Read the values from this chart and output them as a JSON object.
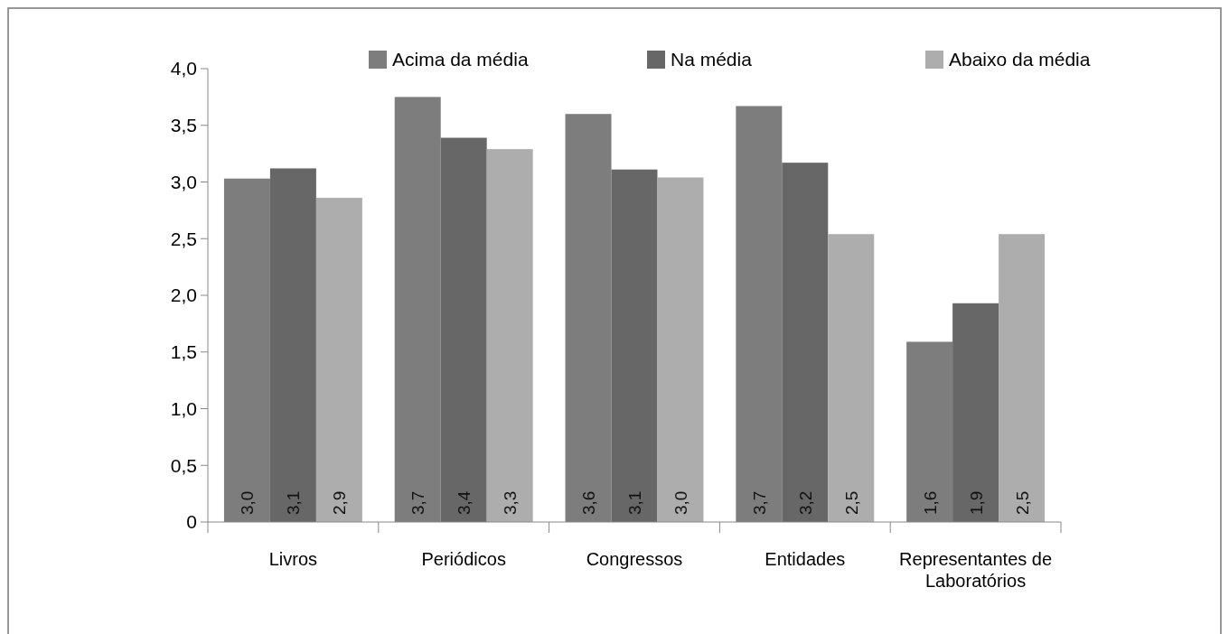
{
  "chart_data": {
    "type": "bar",
    "categories": [
      "Livros",
      "Periódicos",
      "Congressos",
      "Entidades",
      "Representantes de Laboratórios"
    ],
    "series": [
      {
        "name": "Acima da média",
        "color": "#7c7d7c",
        "values": [
          3.03,
          3.75,
          3.6,
          3.67,
          1.59
        ],
        "value_labels": [
          "3,0",
          "3,7",
          "3,6",
          "3,7",
          "1,6"
        ]
      },
      {
        "name": "Na média",
        "color": "#676767",
        "values": [
          3.12,
          3.39,
          3.11,
          3.17,
          1.93
        ],
        "value_labels": [
          "3,1",
          "3,4",
          "3,1",
          "3,2",
          "1,9"
        ]
      },
      {
        "name": "Abaixo da média",
        "color": "#adadad",
        "values": [
          2.86,
          3.29,
          3.04,
          2.54,
          2.54
        ],
        "value_labels": [
          "2,9",
          "3,3",
          "3,0",
          "2,5",
          "2,5"
        ]
      }
    ],
    "ylim": [
      0,
      4
    ],
    "yticks": [
      0,
      {
        "value": 0.5,
        "label": "0,5"
      },
      {
        "value": 1,
        "label": "1,0"
      },
      {
        "value": 1.5,
        "label": "1,5"
      },
      {
        "value": 2,
        "label": "2,0"
      },
      {
        "value": 2.5,
        "label": "2,5"
      },
      {
        "value": 3,
        "label": "3,0"
      },
      {
        "value": 3.5,
        "label": "3,5"
      },
      {
        "value": 4,
        "label": "4,0"
      }
    ],
    "grid": false,
    "legend": "top"
  }
}
